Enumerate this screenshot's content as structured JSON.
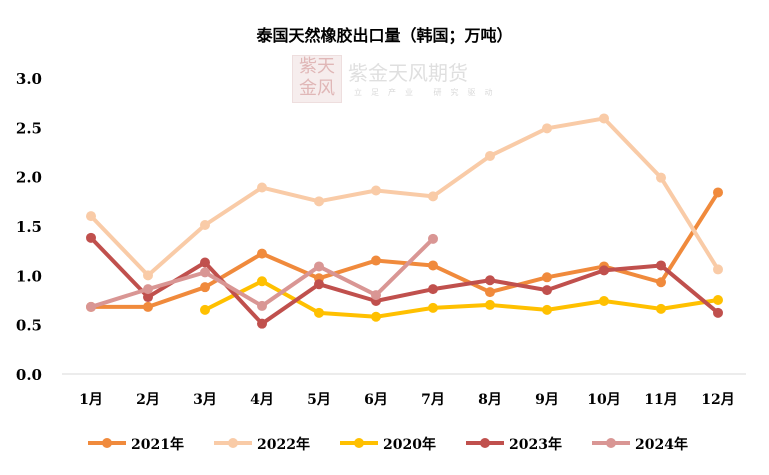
{
  "chart_data": {
    "type": "line",
    "title": "泰国天然橡胶出口量（韩国；万吨）",
    "categories": [
      "1月",
      "2月",
      "3月",
      "4月",
      "5月",
      "6月",
      "7月",
      "8月",
      "9月",
      "10月",
      "11月",
      "12月"
    ],
    "ylim": [
      0,
      3.0
    ],
    "yticks": [
      "0.0",
      "0.5",
      "1.0",
      "1.5",
      "2.0",
      "2.5",
      "3.0"
    ],
    "grid": false,
    "legend_placement": "bottom",
    "series": [
      {
        "name": "2021年",
        "color": "#F08A3C",
        "values": [
          0.68,
          0.68,
          0.88,
          1.22,
          0.97,
          1.15,
          1.1,
          0.83,
          0.98,
          1.09,
          0.93,
          1.84
        ]
      },
      {
        "name": "2022年",
        "color": "#F9CBA7",
        "values": [
          1.6,
          1.0,
          1.51,
          1.89,
          1.75,
          1.86,
          1.8,
          2.21,
          2.49,
          2.59,
          1.99,
          1.06
        ]
      },
      {
        "name": "2020年",
        "color": "#FFC000",
        "values": [
          null,
          null,
          0.65,
          0.94,
          0.62,
          0.58,
          0.67,
          0.7,
          0.65,
          0.74,
          0.66,
          0.75
        ]
      },
      {
        "name": "2023年",
        "color": "#C0504D",
        "values": [
          1.38,
          0.78,
          1.13,
          0.51,
          0.91,
          0.74,
          0.86,
          0.95,
          0.85,
          1.05,
          1.1,
          0.62
        ]
      },
      {
        "name": "2024年",
        "color": "#D99694",
        "values": [
          0.68,
          0.86,
          1.03,
          0.69,
          1.09,
          0.8,
          1.37,
          null,
          null,
          null,
          null,
          null
        ]
      }
    ]
  },
  "watermark": {
    "logo": "紫天金风",
    "name": "紫金天风期货",
    "slogan": "立足产业 研究驱动"
  }
}
